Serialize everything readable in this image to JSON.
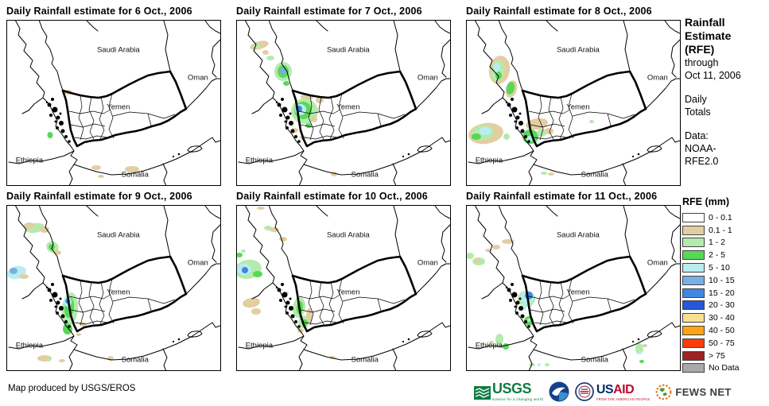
{
  "panels": [
    {
      "title": "Daily Rainfall estimate for 6 Oct., 2006",
      "patches": [
        [
          77,
          90,
          5,
          3,
          "t",
          0
        ],
        [
          54,
          144,
          3.5,
          4,
          "g2",
          0
        ],
        [
          112,
          185,
          6,
          3,
          "t",
          0
        ],
        [
          157,
          187,
          9,
          4,
          "t",
          0
        ],
        [
          118,
          196,
          4,
          2,
          "t",
          0
        ]
      ]
    },
    {
      "title": "Daily Rainfall estimate for 7 Oct., 2006",
      "patches": [
        [
          28,
          31,
          12,
          5,
          "t",
          -15
        ],
        [
          24,
          32,
          5,
          3,
          "g1",
          0
        ],
        [
          36,
          40,
          4,
          3,
          "t",
          0
        ],
        [
          42,
          47,
          5,
          3,
          "g1",
          0
        ],
        [
          58,
          64,
          11,
          12,
          "g1",
          0
        ],
        [
          58,
          64,
          7,
          8,
          "g2",
          0
        ],
        [
          58,
          63,
          4,
          5,
          "b1",
          0
        ],
        [
          62,
          79,
          4,
          3,
          "g2",
          0
        ],
        [
          104,
          100,
          5,
          4,
          "t",
          0
        ],
        [
          88,
          96,
          8,
          4,
          "t",
          0
        ],
        [
          85,
          114,
          17,
          16,
          "g1",
          0
        ],
        [
          83,
          113,
          11,
          11,
          "g2",
          0
        ],
        [
          80,
          112,
          7,
          7,
          "c",
          0
        ],
        [
          78,
          111,
          4,
          4,
          "b2",
          0
        ],
        [
          72,
          138,
          5,
          3,
          "t",
          0
        ],
        [
          90,
          132,
          4,
          3,
          "g2",
          0
        ],
        [
          97,
          124,
          4,
          4,
          "t",
          0
        ],
        [
          83,
          147,
          4,
          3,
          "t",
          0
        ],
        [
          122,
          193,
          4,
          3,
          "t",
          0
        ]
      ]
    },
    {
      "title": "Daily Rainfall estimate for 8 Oct., 2006",
      "patches": [
        [
          41,
          62,
          13,
          18,
          "t",
          10
        ],
        [
          39,
          63,
          8,
          13,
          "g1",
          10
        ],
        [
          38,
          59,
          4,
          6,
          "c",
          0
        ],
        [
          40,
          69,
          4,
          5,
          "g2",
          0
        ],
        [
          56,
          86,
          7,
          11,
          "t",
          15
        ],
        [
          55,
          85,
          5,
          8,
          "g2",
          15
        ],
        [
          24,
          142,
          22,
          13,
          "t",
          -8
        ],
        [
          20,
          141,
          14,
          9,
          "g1",
          -8
        ],
        [
          23,
          139,
          8,
          5,
          "c",
          0
        ],
        [
          12,
          146,
          6,
          4,
          "g2",
          0
        ],
        [
          50,
          146,
          4,
          4,
          "g1",
          0
        ],
        [
          88,
          130,
          14,
          7,
          "t",
          -10
        ],
        [
          103,
          139,
          6,
          4,
          "t",
          0
        ],
        [
          80,
          146,
          10,
          9,
          "g2",
          0
        ],
        [
          79,
          149,
          4,
          4,
          "c",
          0
        ],
        [
          94,
          141,
          6,
          5,
          "g1",
          0
        ],
        [
          157,
          127,
          3,
          2,
          "g1",
          0
        ],
        [
          175,
          136,
          3,
          2,
          "t",
          0
        ],
        [
          97,
          192,
          4,
          2,
          "g1",
          0
        ],
        [
          106,
          193,
          4,
          2,
          "t",
          0
        ]
      ]
    },
    {
      "title": "Daily Rainfall estimate for 9 Oct., 2006",
      "patches": [
        [
          35,
          28,
          12,
          6,
          "g1",
          -10
        ],
        [
          28,
          25,
          7,
          4,
          "t",
          0
        ],
        [
          47,
          30,
          6,
          4,
          "t",
          0
        ],
        [
          57,
          52,
          8,
          7,
          "g1",
          30
        ],
        [
          56,
          52,
          4,
          4,
          "g2",
          30
        ],
        [
          63,
          59,
          5,
          3,
          "t",
          0
        ],
        [
          12,
          84,
          12,
          8,
          "c",
          -15
        ],
        [
          8,
          82,
          5,
          4,
          "b1",
          0
        ],
        [
          21,
          89,
          6,
          3,
          "t",
          0
        ],
        [
          79,
          130,
          10,
          21,
          "g1",
          5
        ],
        [
          78,
          128,
          6,
          13,
          "g2",
          5
        ],
        [
          76,
          121,
          5,
          6,
          "c",
          0
        ],
        [
          76,
          120,
          3,
          3,
          "b2",
          0
        ],
        [
          76,
          155,
          6,
          7,
          "g2",
          0
        ],
        [
          95,
          149,
          4,
          3,
          "t",
          0
        ],
        [
          90,
          162,
          3,
          2,
          "t",
          0
        ],
        [
          47,
          192,
          9,
          4,
          "t",
          0
        ],
        [
          52,
          194,
          3,
          2,
          "g1",
          0
        ],
        [
          69,
          195,
          4,
          2,
          "t",
          0
        ],
        [
          130,
          192,
          4,
          3,
          "t",
          0
        ]
      ]
    },
    {
      "title": "Daily Rainfall estimate for 10 Oct., 2006",
      "patches": [
        [
          30,
          3,
          5,
          2,
          "t",
          0
        ],
        [
          39,
          28,
          5,
          3,
          "g1",
          0
        ],
        [
          47,
          30,
          6,
          3,
          "t",
          0
        ],
        [
          58,
          42,
          5,
          3,
          "t",
          0
        ],
        [
          14,
          80,
          17,
          12,
          "g1",
          -10
        ],
        [
          9,
          80,
          9,
          7,
          "c",
          0
        ],
        [
          10,
          81,
          4,
          4,
          "b2",
          0
        ],
        [
          26,
          86,
          6,
          4,
          "g2",
          0
        ],
        [
          3,
          62,
          4,
          3,
          "g2",
          0
        ],
        [
          8,
          57,
          3,
          2,
          "g1",
          0
        ],
        [
          18,
          122,
          11,
          6,
          "t",
          -10
        ],
        [
          24,
          133,
          6,
          4,
          "t",
          0
        ],
        [
          62,
          110,
          3,
          2,
          "t",
          0
        ],
        [
          78,
          128,
          8,
          13,
          "g1",
          8
        ],
        [
          79,
          128,
          4,
          8,
          "g2",
          8
        ],
        [
          84,
          146,
          7,
          8,
          "g1",
          0
        ],
        [
          85,
          147,
          4,
          4,
          "g2",
          0
        ],
        [
          91,
          138,
          4,
          9,
          "t",
          0
        ],
        [
          80,
          157,
          4,
          3,
          "t",
          0
        ],
        [
          120,
          191,
          4,
          2,
          "t",
          0
        ]
      ]
    },
    {
      "title": "Daily Rainfall estimate for 11 Oct., 2006",
      "patches": [
        [
          52,
          45,
          8,
          3,
          "t",
          0
        ],
        [
          37,
          52,
          5,
          3,
          "t",
          0
        ],
        [
          27,
          56,
          4,
          2,
          "t",
          0
        ],
        [
          4,
          63,
          5,
          4,
          "g1",
          0
        ],
        [
          15,
          70,
          8,
          5,
          "g1",
          0
        ],
        [
          13,
          69,
          4,
          3,
          "t",
          0
        ],
        [
          75,
          117,
          11,
          10,
          "g1",
          0
        ],
        [
          76,
          115,
          8,
          8,
          "c",
          0
        ],
        [
          78,
          113,
          5,
          5,
          "b2",
          0
        ],
        [
          72,
          127,
          3,
          5,
          "c",
          0
        ],
        [
          78,
          145,
          6,
          6,
          "g2",
          0
        ],
        [
          78,
          144,
          2,
          2,
          "c",
          0
        ],
        [
          41,
          168,
          5,
          7,
          "g1",
          0
        ],
        [
          49,
          177,
          4,
          4,
          "g2",
          0
        ],
        [
          31,
          172,
          3,
          2,
          "t",
          0
        ],
        [
          217,
          180,
          5,
          7,
          "g1",
          0
        ],
        [
          218,
          185,
          2,
          2,
          "c",
          0
        ],
        [
          224,
          176,
          3,
          2,
          "t",
          0
        ],
        [
          220,
          196,
          3,
          2,
          "g2",
          0
        ],
        [
          82,
          200,
          4,
          2,
          "g1",
          0
        ],
        [
          91,
          200,
          2,
          2,
          "c",
          0
        ],
        [
          101,
          200,
          3,
          2,
          "g1",
          0
        ]
      ]
    }
  ],
  "map_labels": {
    "saudi_arabia": "Saudi Arabia",
    "oman": "Oman",
    "yemen": "Yemen",
    "ethiopia": "Ethiopia",
    "somalia": "Somalia"
  },
  "side": {
    "title_line1": "Rainfall",
    "title_line2": "Estimate",
    "title_line3": "(RFE)",
    "through": "through",
    "date": "Oct 11, 2006",
    "totals_line1": "Daily",
    "totals_line2": "Totals",
    "data_line1": "Data:",
    "data_line2": "NOAA-",
    "data_line3": "RFE2.0"
  },
  "legend": {
    "title": "RFE (mm)",
    "entries": [
      {
        "label": "0 - 0.1",
        "color": "#FFFFFF"
      },
      {
        "label": "0.1 - 1",
        "color": "#E3CEA2"
      },
      {
        "label": "1 - 2",
        "color": "#B4EBAD"
      },
      {
        "label": "2 - 5",
        "color": "#58D858"
      },
      {
        "label": "5 - 10",
        "color": "#B9EDEF"
      },
      {
        "label": "10 - 15",
        "color": "#7AAFE3"
      },
      {
        "label": "15 - 20",
        "color": "#3F86E5"
      },
      {
        "label": "20 - 30",
        "color": "#2458D8"
      },
      {
        "label": "30 - 40",
        "color": "#F8E191"
      },
      {
        "label": "40 - 50",
        "color": "#FFA412"
      },
      {
        "label": "50 - 75",
        "color": "#FA3C0D"
      },
      {
        "label": "> 75",
        "color": "#9E2222"
      },
      {
        "label": "No Data",
        "color": "#A9A9A9"
      }
    ]
  },
  "palette": {
    "t": "#E3CEA2",
    "g1": "#B4EBAD",
    "g2": "#58D858",
    "c": "#B9EDEF",
    "b1": "#7AAFE3",
    "b2": "#3F86E5"
  },
  "footer": {
    "credit": "Map produced by USGS/EROS",
    "usgs_label": "USGS",
    "usgs_tagline": "science for a changing world",
    "usaid_us": "US",
    "usaid_aid": "AID",
    "usaid_tagline": "FROM THE AMERICAN PEOPLE",
    "fewsnet_label": "FEWS NET"
  }
}
